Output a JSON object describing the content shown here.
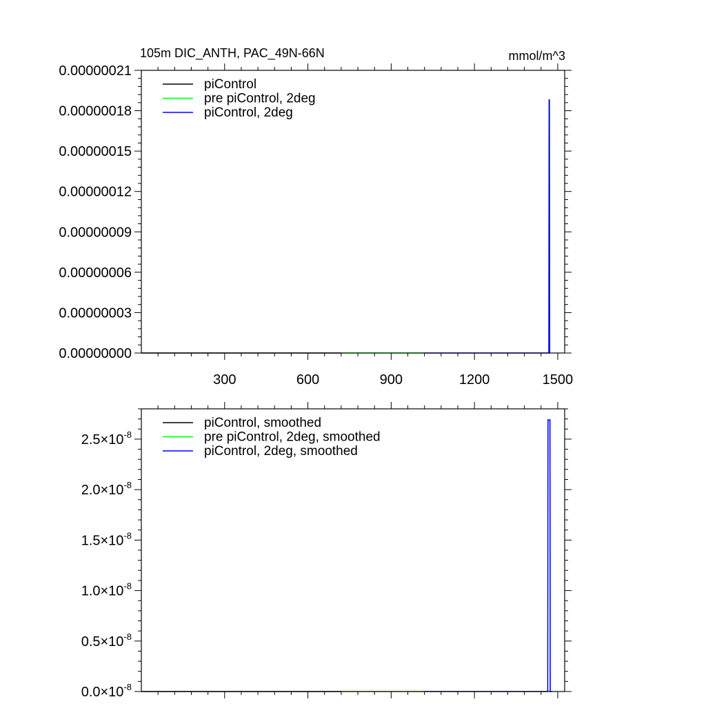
{
  "chart_data": [
    {
      "type": "line",
      "title": "105m DIC_ANTH, PAC_49N-66N",
      "units": "mmol/m^3",
      "xlim": [
        0,
        1525
      ],
      "ylim": [
        0,
        2.1e-07
      ],
      "x_ticks": [
        300,
        600,
        900,
        1200,
        1500
      ],
      "x_tick_labels": [
        "300",
        "600",
        "900",
        "1200",
        "1500"
      ],
      "y_ticks": [
        0,
        3e-08,
        6e-08,
        9e-08,
        1.2e-07,
        1.5e-07,
        1.8e-07,
        2.1e-07
      ],
      "y_tick_labels": [
        "0.00000000",
        "0.00000003",
        "0.00000006",
        "0.00000009",
        "0.00000012",
        "0.00000015",
        "0.00000018",
        "0.00000021"
      ],
      "grid": false,
      "legend_position": "top-left",
      "series": [
        {
          "name": "piControl",
          "color": "#000000",
          "x": [
            0,
            720
          ],
          "y": [
            0,
            0
          ]
        },
        {
          "name": "pre piControl, 2deg",
          "color": "#00ff00",
          "x": [
            720,
            1020
          ],
          "y": [
            0,
            0
          ]
        },
        {
          "name": "piControl, 2deg",
          "color": "#0000ff",
          "x": [
            1020,
            1468,
            1469,
            1470,
            1471,
            1472
          ],
          "y": [
            0,
            0,
            1.88e-07,
            1.88e-07,
            0,
            0
          ]
        }
      ]
    },
    {
      "type": "line",
      "title": "",
      "xlim": [
        0,
        1525
      ],
      "ylim": [
        0,
        2.8e-08
      ],
      "x_ticks": [
        300,
        600,
        900,
        1200,
        1500
      ],
      "y_ticks": [
        0,
        5e-09,
        1e-08,
        1.5e-08,
        2e-08,
        2.5e-08
      ],
      "y_tick_mantissas": [
        "0.0",
        "0.5",
        "1.0",
        "1.5",
        "2.0",
        "2.5"
      ],
      "y_tick_multiplier": "×10",
      "y_tick_exponent": "-8",
      "grid": false,
      "legend_position": "top-left",
      "series": [
        {
          "name": "piControl, smoothed",
          "color": "#000000",
          "x": [
            0,
            720
          ],
          "y": [
            0,
            0
          ]
        },
        {
          "name": "pre piControl, 2deg, smoothed",
          "color": "#00ff00",
          "x": [
            720,
            1020
          ],
          "y": [
            0,
            0
          ]
        },
        {
          "name": "piControl, 2deg, smoothed",
          "color": "#0000ff",
          "x": [
            1020,
            1464,
            1465,
            1472,
            1473,
            1480
          ],
          "y": [
            0,
            0,
            2.69e-08,
            2.69e-08,
            0,
            0
          ]
        }
      ]
    }
  ]
}
